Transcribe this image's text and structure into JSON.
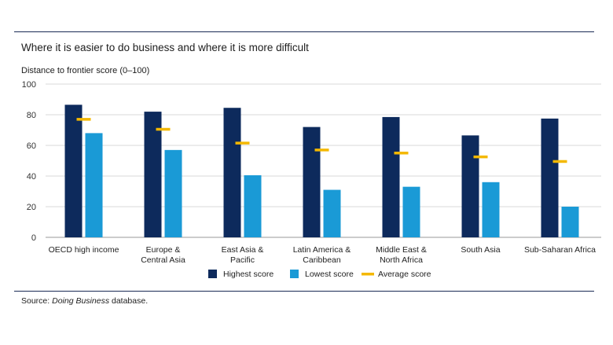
{
  "chart_data": {
    "type": "bar",
    "title": "Where it is easier to do business and where it is more difficult",
    "ylabel": "Distance to frontier score (0–100)",
    "xlabel": "",
    "ylim": [
      0,
      100
    ],
    "yticks": [
      0,
      20,
      40,
      60,
      80,
      100
    ],
    "grid": true,
    "legend_position": "bottom-center",
    "categories": [
      [
        "OECD high income"
      ],
      [
        "Europe &",
        "Central Asia"
      ],
      [
        "East Asia &",
        "Pacific"
      ],
      [
        "Latin America &",
        "Caribbean"
      ],
      [
        "Middle East &",
        "North Africa"
      ],
      [
        "South Asia"
      ],
      [
        "Sub-Saharan Africa"
      ]
    ],
    "series": [
      {
        "name": "Highest score",
        "color": "#0d2a5c",
        "marker": "bar",
        "values": [
          86.5,
          82,
          84.5,
          72,
          78.5,
          66.5,
          77.5
        ]
      },
      {
        "name": "Lowest score",
        "color": "#1a9ad6",
        "marker": "bar",
        "values": [
          68,
          57,
          40.5,
          31,
          33,
          36,
          20
        ]
      },
      {
        "name": "Average score",
        "color": "#f4b800",
        "marker": "dash",
        "values": [
          77,
          70.5,
          61.5,
          57,
          55,
          52.5,
          49.5
        ]
      }
    ]
  },
  "source": {
    "prefix": "Source: ",
    "italic": "Doing Business",
    "suffix": " database."
  }
}
